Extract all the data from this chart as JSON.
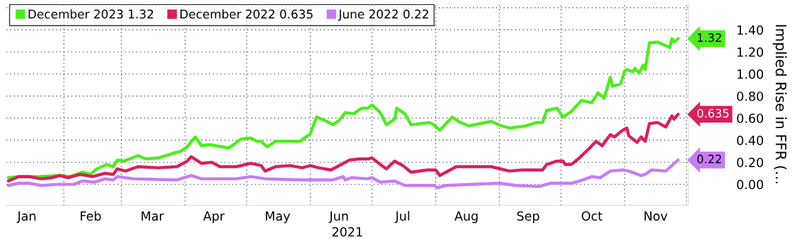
{
  "chart_data": {
    "type": "line",
    "xlabel": "2021",
    "ylabel": "Implied Rise in FFR (…",
    "xlim": [
      "2021-01-04",
      "2021-12-02"
    ],
    "xticks": [
      {
        "value": "2021-02-01",
        "label": null
      },
      {
        "value": "2021-03-01",
        "label": null
      },
      {
        "value": "2021-04-01",
        "label": null
      },
      {
        "value": "2021-05-01",
        "label": null
      },
      {
        "value": "2021-06-01",
        "label": null
      },
      {
        "value": "2021-07-01",
        "label": null
      },
      {
        "value": "2021-08-01",
        "label": null
      },
      {
        "value": "2021-09-01",
        "label": null
      },
      {
        "value": "2021-10-01",
        "label": null
      },
      {
        "value": "2021-11-01",
        "label": null
      },
      {
        "value": "2021-12-01",
        "label": null
      },
      {
        "value": "2021-01-14",
        "label": "Jan"
      },
      {
        "value": "2021-02-14",
        "label": "Feb"
      },
      {
        "value": "2021-03-16",
        "label": "Mar"
      },
      {
        "value": "2021-04-15",
        "label": "Apr"
      },
      {
        "value": "2021-05-16",
        "label": "May"
      },
      {
        "value": "2021-06-15",
        "label": "Jun"
      },
      {
        "value": "2021-07-16",
        "label": "Jul"
      },
      {
        "value": "2021-08-16",
        "label": "Aug"
      },
      {
        "value": "2021-09-15",
        "label": "Sep"
      },
      {
        "value": "2021-10-16",
        "label": "Oct"
      },
      {
        "value": "2021-11-16",
        "label": "Nov"
      }
    ],
    "ylim": [
      -0.19,
      1.64
    ],
    "yticks": [
      {
        "value": 0,
        "label": "0.00"
      },
      {
        "value": 0.2,
        "label": "0.20"
      },
      {
        "value": 0.4,
        "label": "0.40"
      },
      {
        "value": 0.6,
        "label": "0.60"
      },
      {
        "value": 0.8,
        "label": "0.80"
      },
      {
        "value": 1.0,
        "label": "1.00"
      },
      {
        "value": 1.2,
        "label": "1.20"
      },
      {
        "value": 1.4,
        "label": "1.40"
      },
      {
        "value": 1.6,
        "label": null
      }
    ],
    "grid": true,
    "legend": "top left",
    "line_style": "solid",
    "marker": "none",
    "series": [
      {
        "name": "December 2023 1.32",
        "color": "#4cee1c",
        "x": [
          "2021-01-05",
          "2021-01-10",
          "2021-01-20",
          "2021-01-30",
          "2021-02-04",
          "2021-02-10",
          "2021-02-14",
          "2021-02-17",
          "2021-02-22",
          "2021-02-25",
          "2021-02-27",
          "2021-03-02",
          "2021-03-09",
          "2021-03-13",
          "2021-03-19",
          "2021-03-26",
          "2021-03-30",
          "2021-04-02",
          "2021-04-06",
          "2021-04-09",
          "2021-04-13",
          "2021-04-16",
          "2021-04-22",
          "2021-04-24",
          "2021-04-28",
          "2021-05-03",
          "2021-05-06",
          "2021-05-08",
          "2021-05-11",
          "2021-05-15",
          "2021-05-22",
          "2021-05-27",
          "2021-06-01",
          "2021-06-04",
          "2021-06-08",
          "2021-06-12",
          "2021-06-15",
          "2021-06-18",
          "2021-06-22",
          "2021-06-26",
          "2021-06-29",
          "2021-07-01",
          "2021-07-05",
          "2021-07-08",
          "2021-07-12",
          "2021-07-13",
          "2021-07-17",
          "2021-07-20",
          "2021-07-29",
          "2021-07-31",
          "2021-08-03",
          "2021-08-09",
          "2021-08-12",
          "2021-08-17",
          "2021-08-28",
          "2021-09-02",
          "2021-09-06",
          "2021-09-14",
          "2021-09-19",
          "2021-09-22",
          "2021-09-24",
          "2021-09-29",
          "2021-10-02",
          "2021-10-06",
          "2021-10-11",
          "2021-10-16",
          "2021-10-19",
          "2021-10-22",
          "2021-10-25",
          "2021-10-26",
          "2021-10-30",
          "2021-11-01",
          "2021-11-02",
          "2021-11-05",
          "2021-11-06",
          "2021-11-08",
          "2021-11-10",
          "2021-11-11",
          "2021-11-13",
          "2021-11-17",
          "2021-11-23",
          "2021-11-24",
          "2021-11-25",
          "2021-11-27"
        ],
        "values": [
          0.06,
          0.07,
          0.07,
          0.08,
          0.07,
          0.11,
          0.09,
          0.14,
          0.18,
          0.16,
          0.22,
          0.21,
          0.26,
          0.23,
          0.24,
          0.28,
          0.3,
          0.34,
          0.43,
          0.35,
          0.36,
          0.35,
          0.33,
          0.35,
          0.41,
          0.42,
          0.39,
          0.39,
          0.34,
          0.39,
          0.39,
          0.39,
          0.46,
          0.61,
          0.58,
          0.54,
          0.58,
          0.65,
          0.64,
          0.69,
          0.69,
          0.72,
          0.65,
          0.54,
          0.59,
          0.69,
          0.64,
          0.54,
          0.56,
          0.54,
          0.49,
          0.61,
          0.57,
          0.53,
          0.57,
          0.53,
          0.51,
          0.53,
          0.56,
          0.56,
          0.67,
          0.69,
          0.61,
          0.66,
          0.76,
          0.74,
          0.83,
          0.78,
          0.97,
          0.89,
          0.91,
          1.03,
          1.04,
          1.02,
          1.05,
          1.01,
          1.08,
          1.04,
          1.28,
          1.29,
          1.24,
          1.32,
          1.29,
          1.32
        ]
      },
      {
        "name": "December 2022 0.635",
        "color": "#d91f5c",
        "x": [
          "2021-01-05",
          "2021-01-10",
          "2021-01-15",
          "2021-01-21",
          "2021-01-26",
          "2021-01-30",
          "2021-02-03",
          "2021-02-09",
          "2021-02-15",
          "2021-02-21",
          "2021-02-25",
          "2021-02-27",
          "2021-03-03",
          "2021-03-09",
          "2021-03-19",
          "2021-03-28",
          "2021-04-02",
          "2021-04-04",
          "2021-04-09",
          "2021-04-14",
          "2021-04-18",
          "2021-04-26",
          "2021-05-03",
          "2021-05-08",
          "2021-05-10",
          "2021-05-15",
          "2021-05-22",
          "2021-05-28",
          "2021-06-01",
          "2021-06-05",
          "2021-06-11",
          "2021-06-17",
          "2021-06-20",
          "2021-06-25",
          "2021-06-29",
          "2021-07-01",
          "2021-07-05",
          "2021-07-08",
          "2021-07-12",
          "2021-07-16",
          "2021-07-20",
          "2021-07-28",
          "2021-08-01",
          "2021-08-03",
          "2021-08-11",
          "2021-08-18",
          "2021-08-28",
          "2021-09-06",
          "2021-09-12",
          "2021-09-22",
          "2021-09-24",
          "2021-09-29",
          "2021-10-02",
          "2021-10-03",
          "2021-10-06",
          "2021-10-10",
          "2021-10-15",
          "2021-10-18",
          "2021-10-21",
          "2021-10-25",
          "2021-10-27",
          "2021-10-31",
          "2021-11-02",
          "2021-11-03",
          "2021-11-07",
          "2021-11-09",
          "2021-11-11",
          "2021-11-13",
          "2021-11-17",
          "2021-11-21",
          "2021-11-24",
          "2021-11-25",
          "2021-11-27"
        ],
        "values": [
          0.03,
          0.07,
          0.07,
          0.05,
          0.06,
          0.08,
          0.06,
          0.09,
          0.07,
          0.1,
          0.09,
          0.14,
          0.12,
          0.16,
          0.15,
          0.16,
          0.21,
          0.25,
          0.19,
          0.2,
          0.16,
          0.16,
          0.19,
          0.17,
          0.12,
          0.16,
          0.17,
          0.15,
          0.17,
          0.15,
          0.13,
          0.19,
          0.22,
          0.23,
          0.23,
          0.24,
          0.18,
          0.14,
          0.21,
          0.17,
          0.11,
          0.13,
          0.13,
          0.08,
          0.16,
          0.16,
          0.16,
          0.12,
          0.13,
          0.13,
          0.18,
          0.21,
          0.21,
          0.18,
          0.18,
          0.24,
          0.33,
          0.39,
          0.35,
          0.45,
          0.43,
          0.49,
          0.51,
          0.44,
          0.38,
          0.43,
          0.39,
          0.55,
          0.56,
          0.52,
          0.62,
          0.59,
          0.635
        ]
      },
      {
        "name": "June 2022 0.22",
        "color": "#c77cf2",
        "x": [
          "2021-01-05",
          "2021-01-10",
          "2021-01-15",
          "2021-01-21",
          "2021-01-29",
          "2021-02-02",
          "2021-02-06",
          "2021-02-10",
          "2021-02-16",
          "2021-02-21",
          "2021-02-25",
          "2021-02-27",
          "2021-03-07",
          "2021-03-28",
          "2021-04-04",
          "2021-04-09",
          "2021-04-26",
          "2021-05-03",
          "2021-05-10",
          "2021-05-28",
          "2021-06-12",
          "2021-06-17",
          "2021-06-18",
          "2021-06-21",
          "2021-06-29",
          "2021-07-01",
          "2021-07-05",
          "2021-07-12",
          "2021-07-17",
          "2021-07-31",
          "2021-08-02",
          "2021-08-06",
          "2021-09-01",
          "2021-09-09",
          "2021-09-20",
          "2021-09-26",
          "2021-10-01",
          "2021-10-06",
          "2021-10-10",
          "2021-10-16",
          "2021-10-20",
          "2021-10-25",
          "2021-10-31",
          "2021-11-03",
          "2021-11-09",
          "2021-11-11",
          "2021-11-14",
          "2021-11-21",
          "2021-11-24",
          "2021-11-27"
        ],
        "values": [
          -0.01,
          0.01,
          0.01,
          -0.01,
          0.0,
          0.0,
          0.0,
          0.03,
          0.02,
          0.05,
          0.04,
          0.07,
          0.05,
          0.04,
          0.08,
          0.05,
          0.05,
          0.07,
          0.05,
          0.04,
          0.04,
          0.07,
          0.04,
          0.06,
          0.05,
          0.06,
          0.02,
          0.03,
          -0.01,
          -0.01,
          -0.03,
          -0.01,
          0.01,
          -0.01,
          -0.02,
          0.01,
          0.01,
          0.01,
          0.03,
          0.07,
          0.06,
          0.12,
          0.13,
          0.12,
          0.08,
          0.09,
          0.13,
          0.12,
          0.17,
          0.22
        ]
      }
    ],
    "annotations": [
      {
        "text": "1.32",
        "x": "2021-11-27",
        "y": 1.32
      },
      {
        "text": "0.635",
        "x": "2021-11-27",
        "y": 0.635
      },
      {
        "text": "0.22",
        "x": "2021-11-27",
        "y": 0.22
      }
    ]
  }
}
